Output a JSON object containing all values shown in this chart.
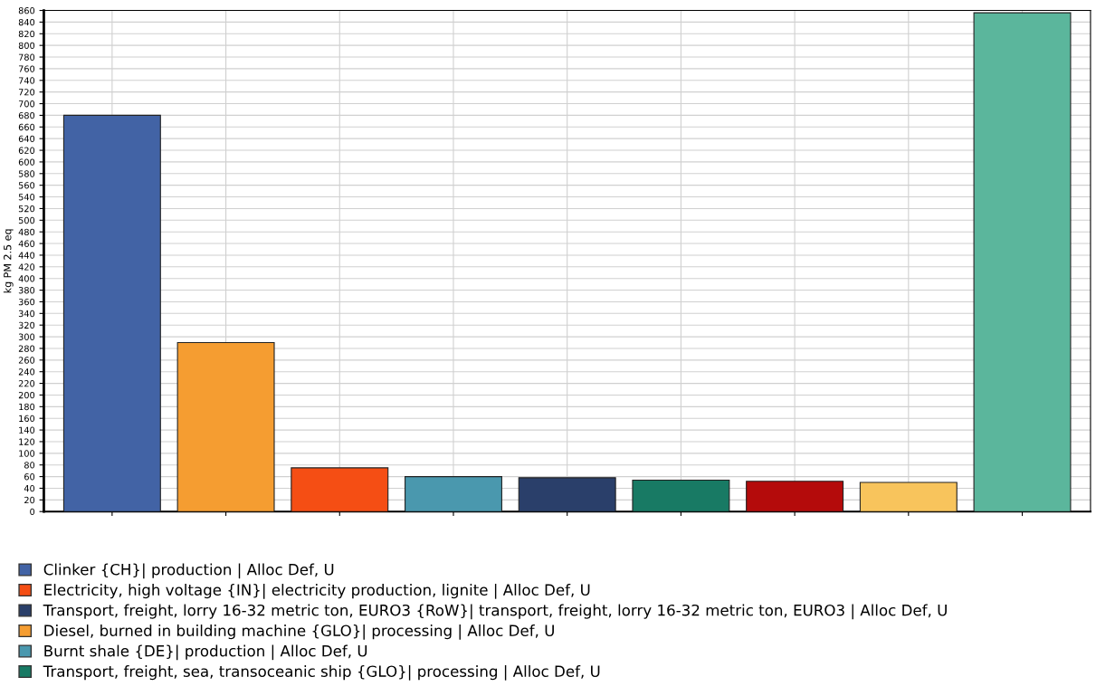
{
  "chart_data": {
    "type": "bar",
    "ylabel": "kg PM 2.5 eq",
    "categories": [
      null,
      null,
      null,
      null,
      null,
      null,
      null,
      null,
      null
    ],
    "series": [
      {
        "name": "Clinker {CH}| production | Alloc Def, U",
        "color": "#4263a5",
        "values": [
          680,
          null,
          null,
          null,
          null,
          null,
          null,
          null,
          null
        ]
      },
      {
        "name": "Electricity, high voltage {IN}| electricity production, lignite | Alloc Def, U",
        "color": "#f54e14",
        "values": [
          null,
          null,
          75,
          null,
          null,
          null,
          null,
          null,
          null
        ]
      },
      {
        "name": "Transport, freight, lorry 16-32 metric ton, EURO3 {RoW}| transport, freight, lorry 16-32 metric ton, EURO3 | Alloc Def, U",
        "color": "#2a3f6a",
        "values": [
          null,
          null,
          null,
          null,
          58,
          null,
          null,
          null,
          null
        ]
      },
      {
        "name": "Diesel, burned in building machine {GLO}| processing | Alloc Def, U",
        "color": "#f59d31",
        "values": [
          null,
          290,
          null,
          null,
          null,
          null,
          null,
          null,
          null
        ]
      },
      {
        "name": "Burnt shale {DE}| production | Alloc Def, U",
        "color": "#4a98ae",
        "values": [
          null,
          null,
          null,
          60,
          null,
          null,
          null,
          null,
          null
        ]
      },
      {
        "name": "Transport, freight, sea, transoceanic ship {GLO}| processing | Alloc Def, U",
        "color": "#187a64",
        "values": [
          null,
          null,
          null,
          null,
          null,
          54,
          null,
          null,
          null
        ]
      },
      {
        "color": "#b40b0b",
        "values": [
          null,
          null,
          null,
          null,
          null,
          null,
          52,
          null,
          null
        ]
      },
      {
        "color": "#f8c45c",
        "values": [
          null,
          null,
          null,
          null,
          null,
          null,
          null,
          50,
          null
        ]
      },
      {
        "color": "#5bb69c",
        "values": [
          null,
          null,
          null,
          null,
          null,
          null,
          null,
          null,
          856
        ]
      }
    ],
    "ylim": [
      0,
      860
    ],
    "yticks": [
      0,
      20,
      40,
      60,
      80,
      100,
      120,
      140,
      160,
      180,
      200,
      220,
      240,
      260,
      280,
      300,
      320,
      340,
      360,
      380,
      400,
      420,
      440,
      460,
      480,
      500,
      520,
      540,
      560,
      580,
      600,
      620,
      640,
      660,
      680,
      700,
      720,
      740,
      760,
      780,
      800,
      820,
      840,
      860
    ],
    "grid": true,
    "legend": "bottom"
  }
}
